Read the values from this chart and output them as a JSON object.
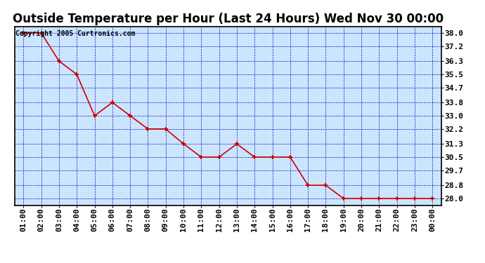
{
  "title": "Outside Temperature per Hour (Last 24 Hours) Wed Nov 30 00:00",
  "copyright_text": "Copyright 2005 Curtronics.com",
  "x_labels": [
    "01:00",
    "02:00",
    "03:00",
    "04:00",
    "05:00",
    "06:00",
    "07:00",
    "08:00",
    "09:00",
    "10:00",
    "11:00",
    "12:00",
    "13:00",
    "14:00",
    "15:00",
    "16:00",
    "17:00",
    "18:00",
    "19:00",
    "20:00",
    "21:00",
    "22:00",
    "23:00",
    "00:00"
  ],
  "y_values": [
    38.0,
    38.0,
    36.3,
    35.5,
    33.0,
    33.8,
    33.0,
    32.2,
    32.2,
    31.3,
    30.5,
    30.5,
    31.3,
    30.5,
    30.5,
    30.5,
    28.8,
    28.8,
    28.0,
    28.0,
    28.0,
    28.0,
    28.0,
    28.0
  ],
  "ylim_min": 27.6,
  "ylim_max": 38.4,
  "yticks": [
    28.0,
    28.8,
    29.7,
    30.5,
    31.3,
    32.2,
    33.0,
    33.8,
    34.7,
    35.5,
    36.3,
    37.2,
    38.0
  ],
  "line_color": "#cc0000",
  "marker_color": "#cc0000",
  "bg_color": "#cce5ff",
  "fig_bg_color": "#ffffff",
  "grid_color": "#0000bb",
  "title_fontsize": 12,
  "tick_fontsize": 8,
  "copyright_fontsize": 7
}
